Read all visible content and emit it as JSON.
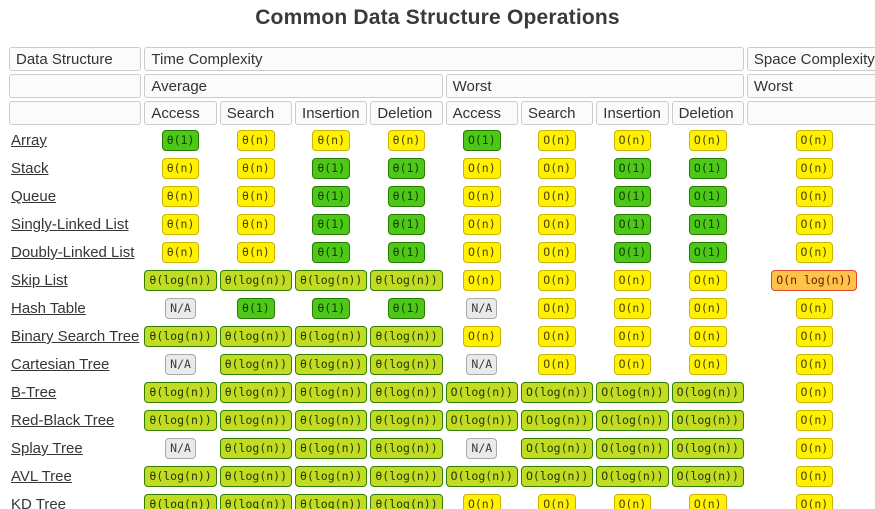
{
  "title": "Common Data Structure Operations",
  "colors": {
    "excellent_green_bg": "#4dc718",
    "excellent_green_border": "#257a00",
    "fair_yellow_bg": "#fff101",
    "fair_yellow_border": "#c9b500",
    "good_yellowgreen_bg": "#c2db23",
    "good_yellowgreen_border": "#327f00",
    "bad_orange_bg": "#ffc34a",
    "bad_orange_border": "#e0482e",
    "na_gray_bg": "#eaeaea",
    "na_gray_border": "#a9a9a9",
    "header_bg": "#fbfbfb",
    "header_border": "#cccccc",
    "title_color": "#3a3a3a"
  },
  "table": {
    "header": {
      "data_structure": "Data Structure",
      "time_complexity": "Time Complexity",
      "space_complexity": "Space Complexity",
      "average": "Average",
      "worst": "Worst",
      "space_worst": "Worst",
      "ops": [
        "Access",
        "Search",
        "Insertion",
        "Deletion"
      ]
    },
    "rows": [
      {
        "name": "Array",
        "cells": [
          {
            "t": "θ(1)",
            "c": "green"
          },
          {
            "t": "θ(n)",
            "c": "yellow"
          },
          {
            "t": "θ(n)",
            "c": "yellow"
          },
          {
            "t": "θ(n)",
            "c": "yellow"
          },
          {
            "t": "O(1)",
            "c": "green"
          },
          {
            "t": "O(n)",
            "c": "yellow"
          },
          {
            "t": "O(n)",
            "c": "yellow"
          },
          {
            "t": "O(n)",
            "c": "yellow"
          },
          {
            "t": "O(n)",
            "c": "yellow"
          }
        ]
      },
      {
        "name": "Stack",
        "cells": [
          {
            "t": "θ(n)",
            "c": "yellow"
          },
          {
            "t": "θ(n)",
            "c": "yellow"
          },
          {
            "t": "θ(1)",
            "c": "green"
          },
          {
            "t": "θ(1)",
            "c": "green"
          },
          {
            "t": "O(n)",
            "c": "yellow"
          },
          {
            "t": "O(n)",
            "c": "yellow"
          },
          {
            "t": "O(1)",
            "c": "green"
          },
          {
            "t": "O(1)",
            "c": "green"
          },
          {
            "t": "O(n)",
            "c": "yellow"
          }
        ]
      },
      {
        "name": "Queue",
        "cells": [
          {
            "t": "θ(n)",
            "c": "yellow"
          },
          {
            "t": "θ(n)",
            "c": "yellow"
          },
          {
            "t": "θ(1)",
            "c": "green"
          },
          {
            "t": "θ(1)",
            "c": "green"
          },
          {
            "t": "O(n)",
            "c": "yellow"
          },
          {
            "t": "O(n)",
            "c": "yellow"
          },
          {
            "t": "O(1)",
            "c": "green"
          },
          {
            "t": "O(1)",
            "c": "green"
          },
          {
            "t": "O(n)",
            "c": "yellow"
          }
        ]
      },
      {
        "name": "Singly-Linked List",
        "cells": [
          {
            "t": "θ(n)",
            "c": "yellow"
          },
          {
            "t": "θ(n)",
            "c": "yellow"
          },
          {
            "t": "θ(1)",
            "c": "green"
          },
          {
            "t": "θ(1)",
            "c": "green"
          },
          {
            "t": "O(n)",
            "c": "yellow"
          },
          {
            "t": "O(n)",
            "c": "yellow"
          },
          {
            "t": "O(1)",
            "c": "green"
          },
          {
            "t": "O(1)",
            "c": "green"
          },
          {
            "t": "O(n)",
            "c": "yellow"
          }
        ]
      },
      {
        "name": "Doubly-Linked List",
        "cells": [
          {
            "t": "θ(n)",
            "c": "yellow"
          },
          {
            "t": "θ(n)",
            "c": "yellow"
          },
          {
            "t": "θ(1)",
            "c": "green"
          },
          {
            "t": "θ(1)",
            "c": "green"
          },
          {
            "t": "O(n)",
            "c": "yellow"
          },
          {
            "t": "O(n)",
            "c": "yellow"
          },
          {
            "t": "O(1)",
            "c": "green"
          },
          {
            "t": "O(1)",
            "c": "green"
          },
          {
            "t": "O(n)",
            "c": "yellow"
          }
        ]
      },
      {
        "name": "Skip List",
        "cells": [
          {
            "t": "θ(log(n))",
            "c": "yellowgreen"
          },
          {
            "t": "θ(log(n))",
            "c": "yellowgreen"
          },
          {
            "t": "θ(log(n))",
            "c": "yellowgreen"
          },
          {
            "t": "θ(log(n))",
            "c": "yellowgreen"
          },
          {
            "t": "O(n)",
            "c": "yellow"
          },
          {
            "t": "O(n)",
            "c": "yellow"
          },
          {
            "t": "O(n)",
            "c": "yellow"
          },
          {
            "t": "O(n)",
            "c": "yellow"
          },
          {
            "t": "O(n log(n))",
            "c": "orange"
          }
        ]
      },
      {
        "name": "Hash Table",
        "cells": [
          {
            "t": "N/A",
            "c": "gray"
          },
          {
            "t": "θ(1)",
            "c": "green"
          },
          {
            "t": "θ(1)",
            "c": "green"
          },
          {
            "t": "θ(1)",
            "c": "green"
          },
          {
            "t": "N/A",
            "c": "gray"
          },
          {
            "t": "O(n)",
            "c": "yellow"
          },
          {
            "t": "O(n)",
            "c": "yellow"
          },
          {
            "t": "O(n)",
            "c": "yellow"
          },
          {
            "t": "O(n)",
            "c": "yellow"
          }
        ]
      },
      {
        "name": "Binary Search Tree",
        "cells": [
          {
            "t": "θ(log(n))",
            "c": "yellowgreen"
          },
          {
            "t": "θ(log(n))",
            "c": "yellowgreen"
          },
          {
            "t": "θ(log(n))",
            "c": "yellowgreen"
          },
          {
            "t": "θ(log(n))",
            "c": "yellowgreen"
          },
          {
            "t": "O(n)",
            "c": "yellow"
          },
          {
            "t": "O(n)",
            "c": "yellow"
          },
          {
            "t": "O(n)",
            "c": "yellow"
          },
          {
            "t": "O(n)",
            "c": "yellow"
          },
          {
            "t": "O(n)",
            "c": "yellow"
          }
        ]
      },
      {
        "name": "Cartesian Tree",
        "cells": [
          {
            "t": "N/A",
            "c": "gray"
          },
          {
            "t": "θ(log(n))",
            "c": "yellowgreen"
          },
          {
            "t": "θ(log(n))",
            "c": "yellowgreen"
          },
          {
            "t": "θ(log(n))",
            "c": "yellowgreen"
          },
          {
            "t": "N/A",
            "c": "gray"
          },
          {
            "t": "O(n)",
            "c": "yellow"
          },
          {
            "t": "O(n)",
            "c": "yellow"
          },
          {
            "t": "O(n)",
            "c": "yellow"
          },
          {
            "t": "O(n)",
            "c": "yellow"
          }
        ]
      },
      {
        "name": "B-Tree",
        "cells": [
          {
            "t": "θ(log(n))",
            "c": "yellowgreen"
          },
          {
            "t": "θ(log(n))",
            "c": "yellowgreen"
          },
          {
            "t": "θ(log(n))",
            "c": "yellowgreen"
          },
          {
            "t": "θ(log(n))",
            "c": "yellowgreen"
          },
          {
            "t": "O(log(n))",
            "c": "yellowgreen"
          },
          {
            "t": "O(log(n))",
            "c": "yellowgreen"
          },
          {
            "t": "O(log(n))",
            "c": "yellowgreen"
          },
          {
            "t": "O(log(n))",
            "c": "yellowgreen"
          },
          {
            "t": "O(n)",
            "c": "yellow"
          }
        ]
      },
      {
        "name": "Red-Black Tree",
        "cells": [
          {
            "t": "θ(log(n))",
            "c": "yellowgreen"
          },
          {
            "t": "θ(log(n))",
            "c": "yellowgreen"
          },
          {
            "t": "θ(log(n))",
            "c": "yellowgreen"
          },
          {
            "t": "θ(log(n))",
            "c": "yellowgreen"
          },
          {
            "t": "O(log(n))",
            "c": "yellowgreen"
          },
          {
            "t": "O(log(n))",
            "c": "yellowgreen"
          },
          {
            "t": "O(log(n))",
            "c": "yellowgreen"
          },
          {
            "t": "O(log(n))",
            "c": "yellowgreen"
          },
          {
            "t": "O(n)",
            "c": "yellow"
          }
        ]
      },
      {
        "name": "Splay Tree",
        "cells": [
          {
            "t": "N/A",
            "c": "gray"
          },
          {
            "t": "θ(log(n))",
            "c": "yellowgreen"
          },
          {
            "t": "θ(log(n))",
            "c": "yellowgreen"
          },
          {
            "t": "θ(log(n))",
            "c": "yellowgreen"
          },
          {
            "t": "N/A",
            "c": "gray"
          },
          {
            "t": "O(log(n))",
            "c": "yellowgreen"
          },
          {
            "t": "O(log(n))",
            "c": "yellowgreen"
          },
          {
            "t": "O(log(n))",
            "c": "yellowgreen"
          },
          {
            "t": "O(n)",
            "c": "yellow"
          }
        ]
      },
      {
        "name": "AVL Tree",
        "cells": [
          {
            "t": "θ(log(n))",
            "c": "yellowgreen"
          },
          {
            "t": "θ(log(n))",
            "c": "yellowgreen"
          },
          {
            "t": "θ(log(n))",
            "c": "yellowgreen"
          },
          {
            "t": "θ(log(n))",
            "c": "yellowgreen"
          },
          {
            "t": "O(log(n))",
            "c": "yellowgreen"
          },
          {
            "t": "O(log(n))",
            "c": "yellowgreen"
          },
          {
            "t": "O(log(n))",
            "c": "yellowgreen"
          },
          {
            "t": "O(log(n))",
            "c": "yellowgreen"
          },
          {
            "t": "O(n)",
            "c": "yellow"
          }
        ]
      },
      {
        "name": "KD Tree",
        "cells": [
          {
            "t": "θ(log(n))",
            "c": "yellowgreen"
          },
          {
            "t": "θ(log(n))",
            "c": "yellowgreen"
          },
          {
            "t": "θ(log(n))",
            "c": "yellowgreen"
          },
          {
            "t": "θ(log(n))",
            "c": "yellowgreen"
          },
          {
            "t": "O(n)",
            "c": "yellow"
          },
          {
            "t": "O(n)",
            "c": "yellow"
          },
          {
            "t": "O(n)",
            "c": "yellow"
          },
          {
            "t": "O(n)",
            "c": "yellow"
          },
          {
            "t": "O(n)",
            "c": "yellow"
          }
        ]
      }
    ]
  }
}
